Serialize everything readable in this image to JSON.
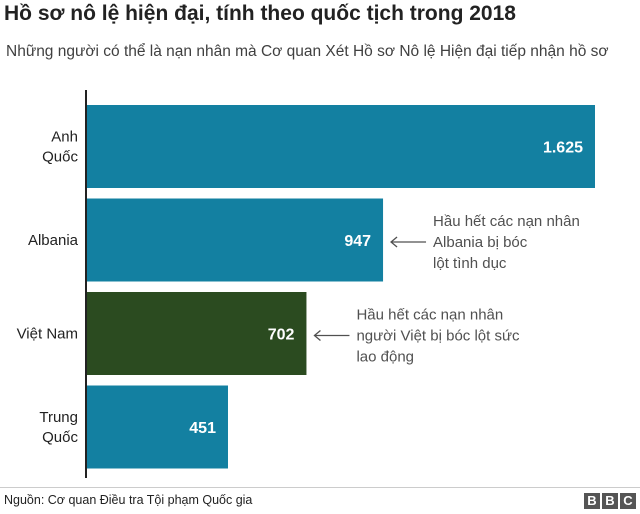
{
  "title": "Hồ sơ nô lệ hiện đại, tính theo quốc tịch trong 2018",
  "subtitle": "Những người có thể là nạn nhân mà Cơ quan Xét Hồ sơ Nô lệ Hiện đại tiếp nhận hồ sơ",
  "source": "Nguồn: Cơ quan Điều tra Tội phạm Quốc gia",
  "logo_letters": [
    "B",
    "B",
    "C"
  ],
  "colors": {
    "bar_default": "#1380a1",
    "bar_highlight": "#2b4b20",
    "axis": "#222222",
    "annotation": "#505050"
  },
  "chart_data": {
    "type": "bar",
    "orientation": "horizontal",
    "title": "Hồ sơ nô lệ hiện đại, tính theo quốc tịch trong 2018",
    "subtitle": "Những người có thể là nạn nhân mà Cơ quan Xét Hồ sơ Nô lệ Hiện đại tiếp nhận hồ sơ",
    "categories": [
      [
        "Anh",
        "Quốc"
      ],
      [
        "Albania"
      ],
      [
        "Việt Nam"
      ],
      [
        "Trung",
        "Quốc"
      ]
    ],
    "values": [
      1625,
      947,
      702,
      451
    ],
    "value_labels": [
      "1.625",
      "947",
      "702",
      "451"
    ],
    "highlight_index": 2,
    "xlim": [
      0,
      1625
    ],
    "grid": false,
    "annotations": [
      {
        "bar_index": 1,
        "lines": [
          "Hầu hết các nạn nhân",
          "Albania bị bóc",
          "lột tình dục"
        ]
      },
      {
        "bar_index": 2,
        "lines": [
          "Hầu hết các nạn nhân",
          "người Việt bị bóc lột sức",
          "lao động"
        ]
      }
    ]
  }
}
